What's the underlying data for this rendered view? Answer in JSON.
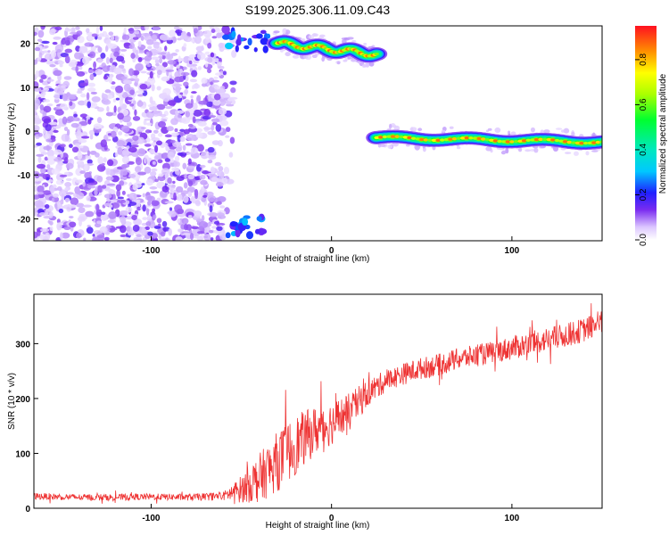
{
  "chart_data": [
    {
      "type": "heatmap",
      "title": "S199.2025.306.11.09.C43",
      "xlabel": "Height of straight line (km)",
      "ylabel": "Frequency (Hz)",
      "xlim": [
        -165,
        150
      ],
      "ylim": [
        -25,
        24
      ],
      "xticks": [
        -100,
        0,
        100
      ],
      "xtick_labels": [
        "-100",
        "0",
        "100"
      ],
      "yticks": [
        20,
        10,
        0,
        -10,
        -20
      ],
      "ytick_labels": [
        "20",
        "10",
        "0",
        "-10",
        "-20"
      ],
      "colorbar": {
        "label": "Normalized spectral amplitude",
        "range": [
          0.0,
          0.95
        ],
        "ticks": [
          0.0,
          0.2,
          0.4,
          0.6,
          0.8
        ],
        "tick_labels": [
          "0.0",
          "0.2",
          "0.4",
          "0.6",
          "0.8"
        ],
        "colormap": "white-purple-blue-cyan-green-yellow-red"
      },
      "features": [
        {
          "name": "broadband noise region",
          "x_range": [
            -165,
            -60
          ],
          "y_range": [
            -25,
            24
          ],
          "amplitude": [
            0.05,
            0.3
          ]
        },
        {
          "name": "upper tone segment",
          "x_range": [
            -30,
            25
          ],
          "frequency_start": 20,
          "frequency_end": 17.5,
          "peak_amplitude": 0.92
        },
        {
          "name": "lower tone segment",
          "x_range": [
            25,
            150
          ],
          "frequency_start": -1.5,
          "frequency_end": -2.5,
          "peak_amplitude": 0.92
        },
        {
          "name": "upper-left fragment",
          "x_range": [
            -60,
            -32
          ],
          "frequency": 21,
          "peak_amplitude": 0.35
        },
        {
          "name": "lower-left fragment",
          "x_range": [
            -58,
            -38
          ],
          "frequency": -22,
          "peak_amplitude": 0.35
        }
      ]
    },
    {
      "type": "line",
      "title": "",
      "xlabel": "Height of straight line (km)",
      "ylabel": "SNR (10 * v/v)",
      "xlim": [
        -165,
        150
      ],
      "ylim": [
        0,
        390
      ],
      "xticks": [
        -100,
        0,
        100
      ],
      "xtick_labels": [
        "-100",
        "0",
        "100"
      ],
      "yticks": [
        0,
        100,
        200,
        300
      ],
      "ytick_labels": [
        "0",
        "100",
        "200",
        "300"
      ],
      "color": "#ee3333",
      "series": [
        {
          "name": "SNR",
          "x": [
            -165,
            -140,
            -120,
            -100,
            -80,
            -60,
            -50,
            -40,
            -30,
            -20,
            -10,
            0,
            10,
            20,
            30,
            40,
            50,
            60,
            70,
            80,
            90,
            100,
            110,
            120,
            130,
            140,
            150
          ],
          "y": [
            22,
            20,
            20,
            21,
            20,
            22,
            35,
            55,
            85,
            115,
            140,
            155,
            175,
            210,
            232,
            245,
            255,
            262,
            272,
            278,
            285,
            292,
            300,
            308,
            315,
            325,
            340
          ],
          "noise_amplitude": [
            6,
            6,
            6,
            6,
            6,
            8,
            25,
            45,
            55,
            55,
            45,
            40,
            35,
            25,
            20,
            20,
            20,
            20,
            20,
            20,
            20,
            22,
            22,
            22,
            22,
            22,
            22
          ]
        }
      ]
    }
  ]
}
